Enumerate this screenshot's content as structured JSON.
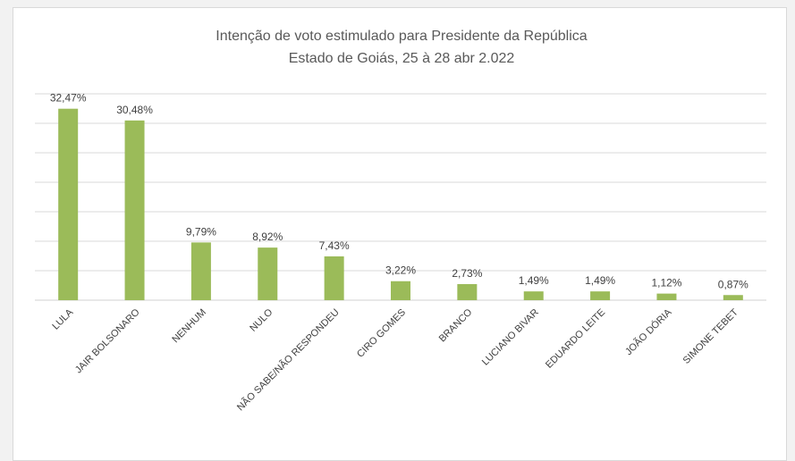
{
  "chart_data": {
    "type": "bar",
    "title": "Intenção de voto estimulado para Presidente da República",
    "subtitle": "Estado de Goiás, 25 à 28 abr 2.022",
    "categories": [
      "LULA",
      "JAIR BOLSONARO",
      "NENHUM",
      "NULO",
      "NÃO SABE/NÃO RESPONDEU",
      "CIRO GOMES",
      "BRANCO",
      "LUCIANO BIVAR",
      "EDUARDO LEITE",
      "JOÃO DÓRIA",
      "SIMONE TEBET"
    ],
    "values": [
      32.47,
      30.48,
      9.79,
      8.92,
      7.43,
      3.22,
      2.73,
      1.49,
      1.49,
      1.12,
      0.87
    ],
    "data_labels": [
      "32,47%",
      "30,48%",
      "9,79%",
      "8,92%",
      "7,43%",
      "3,22%",
      "2,73%",
      "1,49%",
      "1,49%",
      "1,12%",
      "0,87%"
    ],
    "ylim": [
      0,
      35
    ],
    "grid": true,
    "legend": "none",
    "colors": {
      "bar": "#9bbb59",
      "grid": "#d9d9d9",
      "text": "#404040"
    }
  }
}
